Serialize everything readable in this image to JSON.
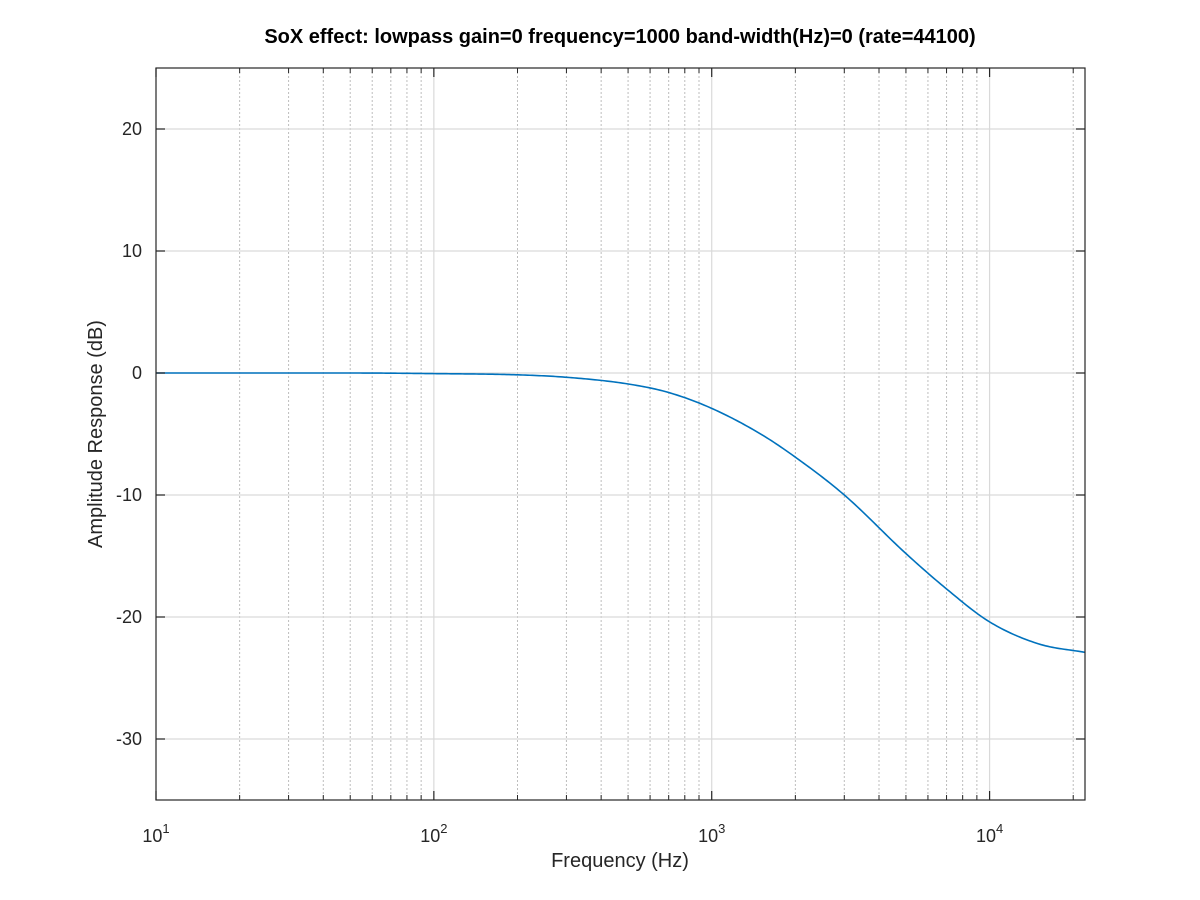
{
  "chart_data": {
    "type": "line",
    "title": "SoX effect: lowpass gain=0 frequency=1000 band-width(Hz)=0 (rate=44100)",
    "xlabel": "Frequency (Hz)",
    "ylabel": "Amplitude Response (dB)",
    "xscale": "log",
    "xlim": [
      10,
      22050
    ],
    "ylim": [
      -35,
      25
    ],
    "grid": true,
    "minor_grid_x": true,
    "x_ticks": [
      {
        "base": "10",
        "exp": "1",
        "value": 10
      },
      {
        "base": "10",
        "exp": "2",
        "value": 100
      },
      {
        "base": "10",
        "exp": "3",
        "value": 1000
      },
      {
        "base": "10",
        "exp": "4",
        "value": 10000
      }
    ],
    "y_ticks": [
      {
        "label": "20",
        "value": 20
      },
      {
        "label": "10",
        "value": 10
      },
      {
        "label": "0",
        "value": 0
      },
      {
        "label": "-10",
        "value": -10
      },
      {
        "label": "-20",
        "value": -20
      },
      {
        "label": "-30",
        "value": -30
      }
    ],
    "series": [
      {
        "color": "#0072bd",
        "x": [
          10,
          20,
          50,
          100,
          200,
          300,
          500,
          700,
          1000,
          1500,
          2000,
          3000,
          5000,
          7000,
          10000,
          15000,
          22050
        ],
        "y": [
          0,
          0,
          0,
          -0.05,
          -0.15,
          -0.35,
          -0.9,
          -1.6,
          -2.9,
          -5.0,
          -6.9,
          -10.0,
          -14.8,
          -17.7,
          -20.4,
          -22.2,
          -22.9
        ]
      }
    ]
  }
}
